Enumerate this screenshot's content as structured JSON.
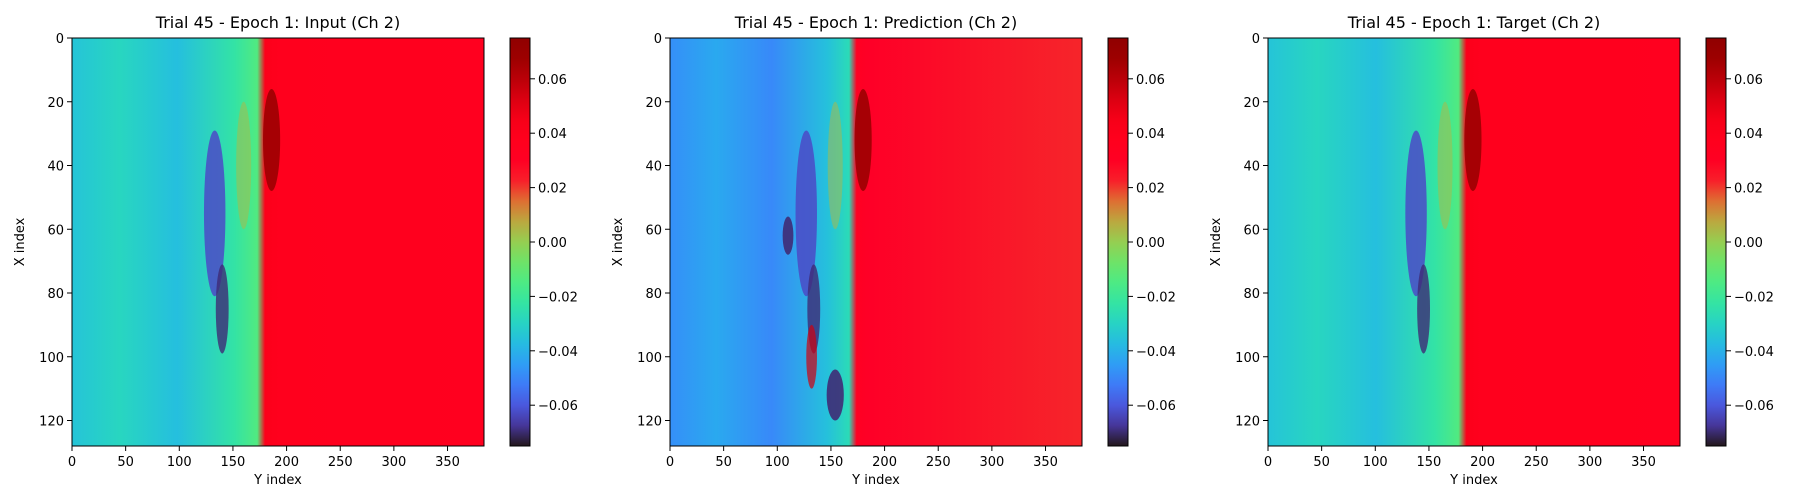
{
  "chart_data": [
    {
      "type": "heatmap",
      "title": "Trial 45 - Epoch 1: Input (Ch 2)",
      "xlabel": "Y index",
      "ylabel": "X index",
      "xlim": [
        0,
        384
      ],
      "ylim": [
        128,
        0
      ],
      "xticks": [
        "0",
        "50",
        "100",
        "150",
        "200",
        "250",
        "300",
        "350"
      ],
      "yticks": [
        "0",
        "20",
        "40",
        "60",
        "80",
        "100",
        "120"
      ],
      "colormap": "turbo",
      "colorbar": {
        "range": [
          -0.075,
          0.075
        ],
        "ticks": [
          "0.06",
          "0.04",
          "0.02",
          "0.00",
          "−0.02",
          "−0.04",
          "−0.06"
        ]
      },
      "front_position_y_index": 178,
      "left_value": -0.032,
      "right_value": 0.035
    },
    {
      "type": "heatmap",
      "title": "Trial 45 - Epoch 1: Prediction (Ch 2)",
      "xlabel": "Y index",
      "ylabel": "X index",
      "xlim": [
        0,
        384
      ],
      "ylim": [
        128,
        0
      ],
      "xticks": [
        "0",
        "50",
        "100",
        "150",
        "200",
        "250",
        "300",
        "350"
      ],
      "yticks": [
        "0",
        "20",
        "40",
        "60",
        "80",
        "100",
        "120"
      ],
      "colormap": "turbo",
      "colorbar": {
        "range": [
          -0.075,
          0.075
        ],
        "ticks": [
          "0.06",
          "0.04",
          "0.02",
          "0.00",
          "−0.02",
          "−0.04",
          "−0.06"
        ]
      },
      "front_position_y_index": 172,
      "left_value": -0.045,
      "right_value": 0.022
    },
    {
      "type": "heatmap",
      "title": "Trial 45 - Epoch 1: Target (Ch 2)",
      "xlabel": "Y index",
      "ylabel": "X index",
      "xlim": [
        0,
        384
      ],
      "ylim": [
        128,
        0
      ],
      "xticks": [
        "0",
        "50",
        "100",
        "150",
        "200",
        "250",
        "300",
        "350"
      ],
      "yticks": [
        "0",
        "20",
        "40",
        "60",
        "80",
        "100",
        "120"
      ],
      "colormap": "turbo",
      "colorbar": {
        "range": [
          -0.075,
          0.075
        ],
        "ticks": [
          "0.06",
          "0.04",
          "0.02",
          "0.00",
          "−0.02",
          "−0.04",
          "−0.06"
        ]
      },
      "front_position_y_index": 183,
      "left_value": -0.032,
      "right_value": 0.035
    }
  ]
}
